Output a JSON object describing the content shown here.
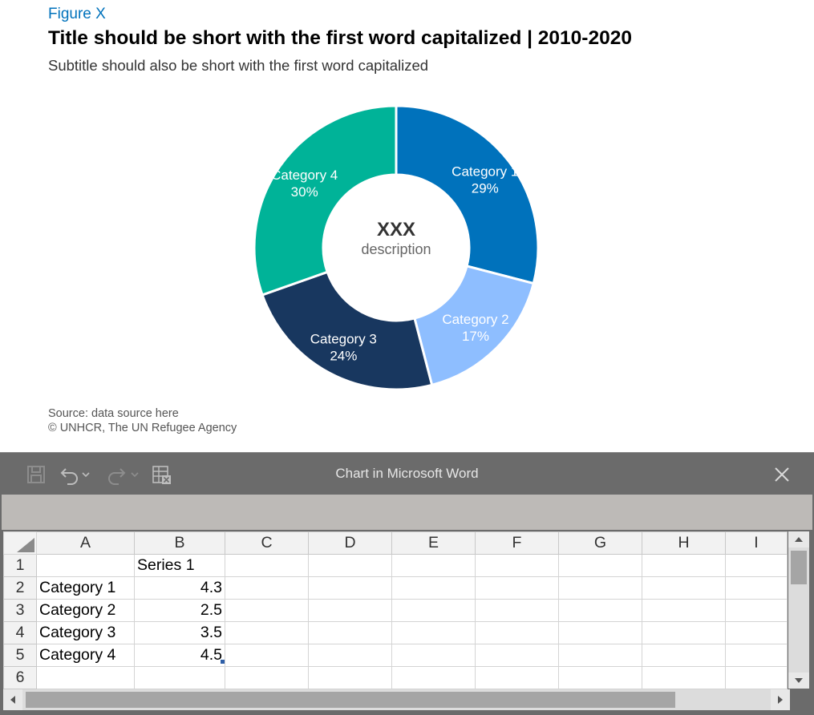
{
  "figure": {
    "label": "Figure X",
    "title": "Title should be short with the first word capitalized | 2010-2020",
    "subtitle": "Subtitle should also be short with the first word capitalized",
    "source_line1": "Source: data source here",
    "source_line2": "© UNHCR, The UN Refugee Agency"
  },
  "chart_data": {
    "type": "pie",
    "variant": "donut",
    "center_value": "XXX",
    "center_label": "description",
    "categories": [
      "Category 1",
      "Category 2",
      "Category 3",
      "Category 4"
    ],
    "values": [
      4.3,
      2.5,
      3.5,
      4.5
    ],
    "percent_labels": [
      "29%",
      "17%",
      "24%",
      "30%"
    ],
    "colors": [
      "#0072bc",
      "#8ebeff",
      "#18375f",
      "#00b398"
    ]
  },
  "excel": {
    "window_title": "Chart in Microsoft Word",
    "icons": [
      "save-icon",
      "undo-icon",
      "redo-icon",
      "edit-data-icon",
      "close-icon"
    ],
    "column_headers": [
      "A",
      "B",
      "C",
      "D",
      "E",
      "F",
      "G",
      "H",
      "I"
    ],
    "rows": [
      {
        "num": "1",
        "a": "",
        "b": "Series 1"
      },
      {
        "num": "2",
        "a": "Category 1",
        "b": "4.3"
      },
      {
        "num": "3",
        "a": "Category 2",
        "b": "2.5"
      },
      {
        "num": "4",
        "a": "Category 3",
        "b": "3.5"
      },
      {
        "num": "5",
        "a": "Category 4",
        "b": "4.5"
      },
      {
        "num": "6",
        "a": "",
        "b": ""
      }
    ]
  }
}
